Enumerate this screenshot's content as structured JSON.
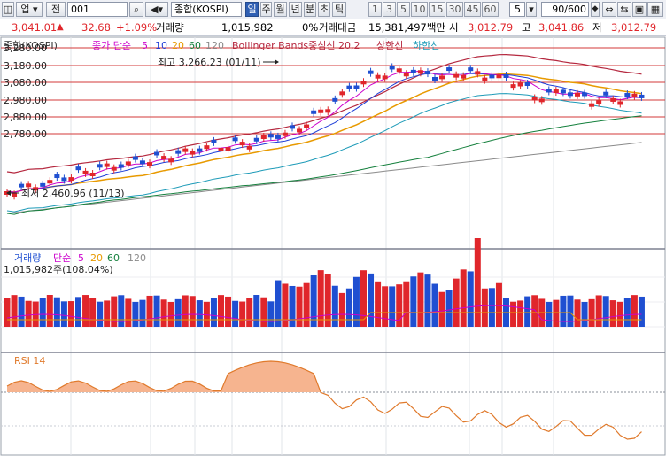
{
  "toolbar": {
    "code": "001",
    "search_icon": "magnifier-icon",
    "sound_icon": "speaker-icon",
    "index_name": "종합(KOSPI)",
    "periods": [
      "일",
      "주",
      "월",
      "년",
      "분",
      "초",
      "틱"
    ],
    "selected_period": "일",
    "intervals": [
      "1",
      "3",
      "5",
      "10",
      "15",
      "30",
      "45",
      "60"
    ],
    "interval_value": "5",
    "count": "90/600",
    "btn_up": "업",
    "btn_jeon": "전"
  },
  "info": {
    "price": "3,041.01",
    "change": "32.68",
    "change_pct": "+1.09%",
    "volume_label": "거래량",
    "volume": "1,015,982",
    "volume_pct": "0%",
    "amount_label": "거래대금",
    "amount": "15,381,497백만",
    "open_label": "시",
    "open": "3,012.79",
    "high_label": "고",
    "high": "3,041.86",
    "low_label": "저",
    "low": "3,012.79"
  },
  "price_panel": {
    "legend_index": "종합(KOSPI)",
    "legend_ma": "종가 단순",
    "legend_ma_periods": [
      "5",
      "10",
      "20",
      "60",
      "120"
    ],
    "legend_bb": "Bollinger Bands중심선 20,2",
    "legend_upper": "상한선",
    "legend_lower": "하한선",
    "y_labels": [
      "3,280.00",
      "3,180.00",
      "3,080.00",
      "2,980.00",
      "2,880.00",
      "2,780.00"
    ],
    "high_note": "최고 3,266.23 (01/11)",
    "low_note": "최저 2,460.96 (11/13)"
  },
  "volume_panel": {
    "title": "거래량",
    "ma_label": "단순",
    "ma_periods": [
      "5",
      "20",
      "60",
      "120"
    ],
    "value": "1,015,982주(108.04%)"
  },
  "rsi_panel": {
    "title": "RSI 14"
  },
  "colors": {
    "up": "#e0262b",
    "down": "#1f4fd1",
    "ma5": "#cc00cc",
    "ma10": "#1f3fd8",
    "ma20": "#e89a00",
    "ma60": "#15803d",
    "ma120": "#8a8a8a",
    "bb": "#b5283f",
    "bb_lower": "#1e9bb8",
    "rsi_fill": "#f6b48f",
    "rsi_line": "#e07a2c"
  }
}
